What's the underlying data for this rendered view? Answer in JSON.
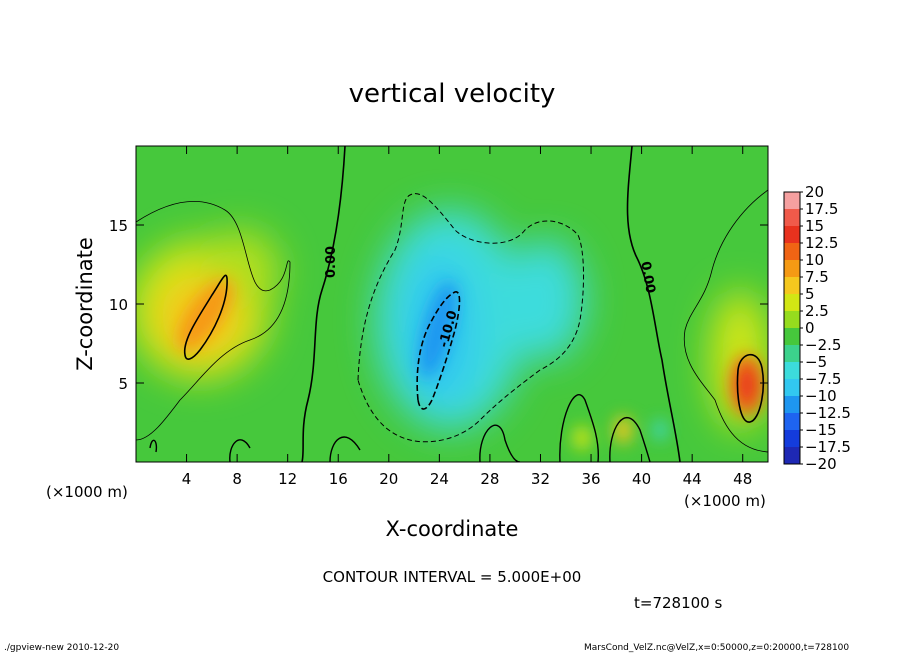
{
  "chart_data": {
    "type": "heatmap",
    "title": "vertical velocity",
    "xlabel": "X-coordinate",
    "ylabel": "Z-coordinate",
    "x_unit_label": "(×1000 m)",
    "x_unit_label_right": "(×1000 m)",
    "xlim": [
      0,
      50
    ],
    "ylim": [
      0,
      20
    ],
    "x_ticks": [
      4,
      8,
      12,
      16,
      20,
      24,
      28,
      32,
      36,
      40,
      44,
      48
    ],
    "x_tick_labels": [
      "4",
      "8",
      "12",
      "16",
      "20",
      "24",
      "28",
      "32",
      "36",
      "40",
      "44",
      "48"
    ],
    "y_ticks": [
      5,
      10,
      15
    ],
    "y_tick_labels": [
      "5",
      "10",
      "15"
    ],
    "colorbar": {
      "levels": [
        20,
        17.5,
        15,
        12.5,
        10,
        7.5,
        5,
        2.5,
        0,
        -2.5,
        -5,
        -7.5,
        -10,
        -12.5,
        -15,
        -17.5,
        -20
      ],
      "labels": [
        "20",
        "17.5",
        "15",
        "12.5",
        "10",
        "7.5",
        "5",
        "2.5",
        "0",
        "−2.5",
        "−5",
        "−7.5",
        "−10",
        "−12.5",
        "−15",
        "−17.5",
        "−20"
      ],
      "colors": [
        "#f5a0a0",
        "#f05a4a",
        "#e8321e",
        "#f06414",
        "#f59a14",
        "#f5c81e",
        "#d2e614",
        "#96dc1e",
        "#46c83c",
        "#3cd28c",
        "#3cdcdc",
        "#32c8f0",
        "#1e96f0",
        "#1e64f0",
        "#143cdc",
        "#1e28b4",
        "#5a1eb4"
      ]
    },
    "contour_labels": [
      "0.00",
      "0.00",
      "-10.0"
    ],
    "features": [
      {
        "kind": "updraft",
        "x": 5.5,
        "z": 9,
        "value": 10
      },
      {
        "kind": "updraft",
        "x": 48,
        "z": 5,
        "value": 15
      },
      {
        "kind": "downdraft",
        "x": 24,
        "z": 8,
        "value": -10
      },
      {
        "kind": "downdraft",
        "x": 32,
        "z": 10,
        "value": -5
      }
    ]
  },
  "annotations": {
    "contour_interval": "CONTOUR INTERVAL = 5.000E+00",
    "time": "t=728100 s",
    "footer_left": "./gpview-new  2010-12-20",
    "footer_right": "MarsCond_VelZ.nc@VelZ,x=0:50000,z=0:20000,t=728100"
  }
}
